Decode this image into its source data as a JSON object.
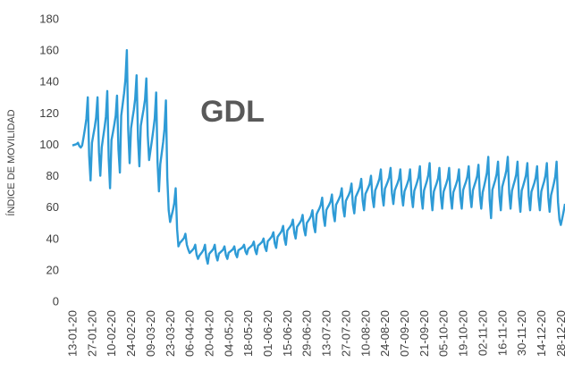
{
  "chart_data": {
    "type": "line",
    "title": "GDL",
    "ylabel": "ÍNDICE DE MOVILIDAD",
    "xlabel": "",
    "ylim": [
      0,
      180
    ],
    "yticks": [
      0,
      20,
      40,
      60,
      80,
      100,
      120,
      140,
      160,
      180
    ],
    "grid": false,
    "legend": "none",
    "colors": {
      "line": "#2E9BD6",
      "text": "#404040",
      "title": "#595959"
    },
    "x_start": "2020-01-13",
    "x_end": "2020-12-31",
    "x_ticks": [
      "13-01-20",
      "27-01-20",
      "10-02-20",
      "24-02-20",
      "09-03-20",
      "23-03-20",
      "06-04-20",
      "20-04-20",
      "04-05-20",
      "18-05-20",
      "01-06-20",
      "15-06-20",
      "29-06-20",
      "13-07-20",
      "27-07-20",
      "10-08-20",
      "24-08-20",
      "07-09-20",
      "21-09-20",
      "05-10-20",
      "19-10-20",
      "02-11-20",
      "16-11-20",
      "30-11-20",
      "14-12-20",
      "28-12-20"
    ],
    "series": [
      {
        "name": "",
        "x": [
          "13-01-20",
          "20-01-20",
          "27-01-20",
          "03-02-20",
          "10-02-20",
          "17-02-20",
          "24-02-20",
          "02-03-20",
          "09-03-20",
          "16-03-20",
          "23-03-20",
          "30-03-20",
          "06-04-20",
          "13-04-20",
          "20-04-20",
          "27-04-20",
          "04-05-20",
          "11-05-20",
          "18-05-20",
          "25-05-20",
          "01-06-20",
          "08-06-20",
          "15-06-20",
          "22-06-20",
          "29-06-20",
          "06-07-20",
          "13-07-20",
          "20-07-20",
          "27-07-20",
          "03-08-20",
          "10-08-20",
          "17-08-20",
          "24-08-20",
          "31-08-20",
          "07-09-20",
          "14-09-20",
          "21-09-20",
          "28-09-20",
          "05-10-20",
          "12-10-20",
          "19-10-20",
          "26-10-20",
          "02-11-20",
          "09-11-20",
          "16-11-20",
          "23-11-20",
          "30-11-20",
          "07-12-20",
          "14-12-20",
          "21-12-20",
          "28-12-20"
        ],
        "low": [
          98,
          77,
          80,
          72,
          82,
          88,
          86,
          90,
          70,
          58,
          35,
          33,
          27,
          24,
          26,
          27,
          28,
          30,
          30,
          32,
          34,
          36,
          40,
          42,
          44,
          48,
          51,
          54,
          56,
          58,
          60,
          61,
          62,
          61,
          60,
          59,
          58,
          59,
          59,
          59,
          60,
          59,
          53,
          58,
          59,
          57,
          58,
          58,
          57,
          52,
          31
        ],
        "high": [
          101,
          130,
          130,
          134,
          131,
          160,
          144,
          142,
          133,
          128,
          72,
          43,
          36,
          36,
          36,
          35,
          35,
          36,
          38,
          40,
          44,
          48,
          52,
          55,
          58,
          66,
          68,
          72,
          75,
          78,
          80,
          84,
          85,
          84,
          84,
          86,
          88,
          85,
          85,
          84,
          86,
          87,
          92,
          89,
          92,
          89,
          88,
          86,
          88,
          89,
          73
        ],
        "end_value": 59
      }
    ]
  }
}
